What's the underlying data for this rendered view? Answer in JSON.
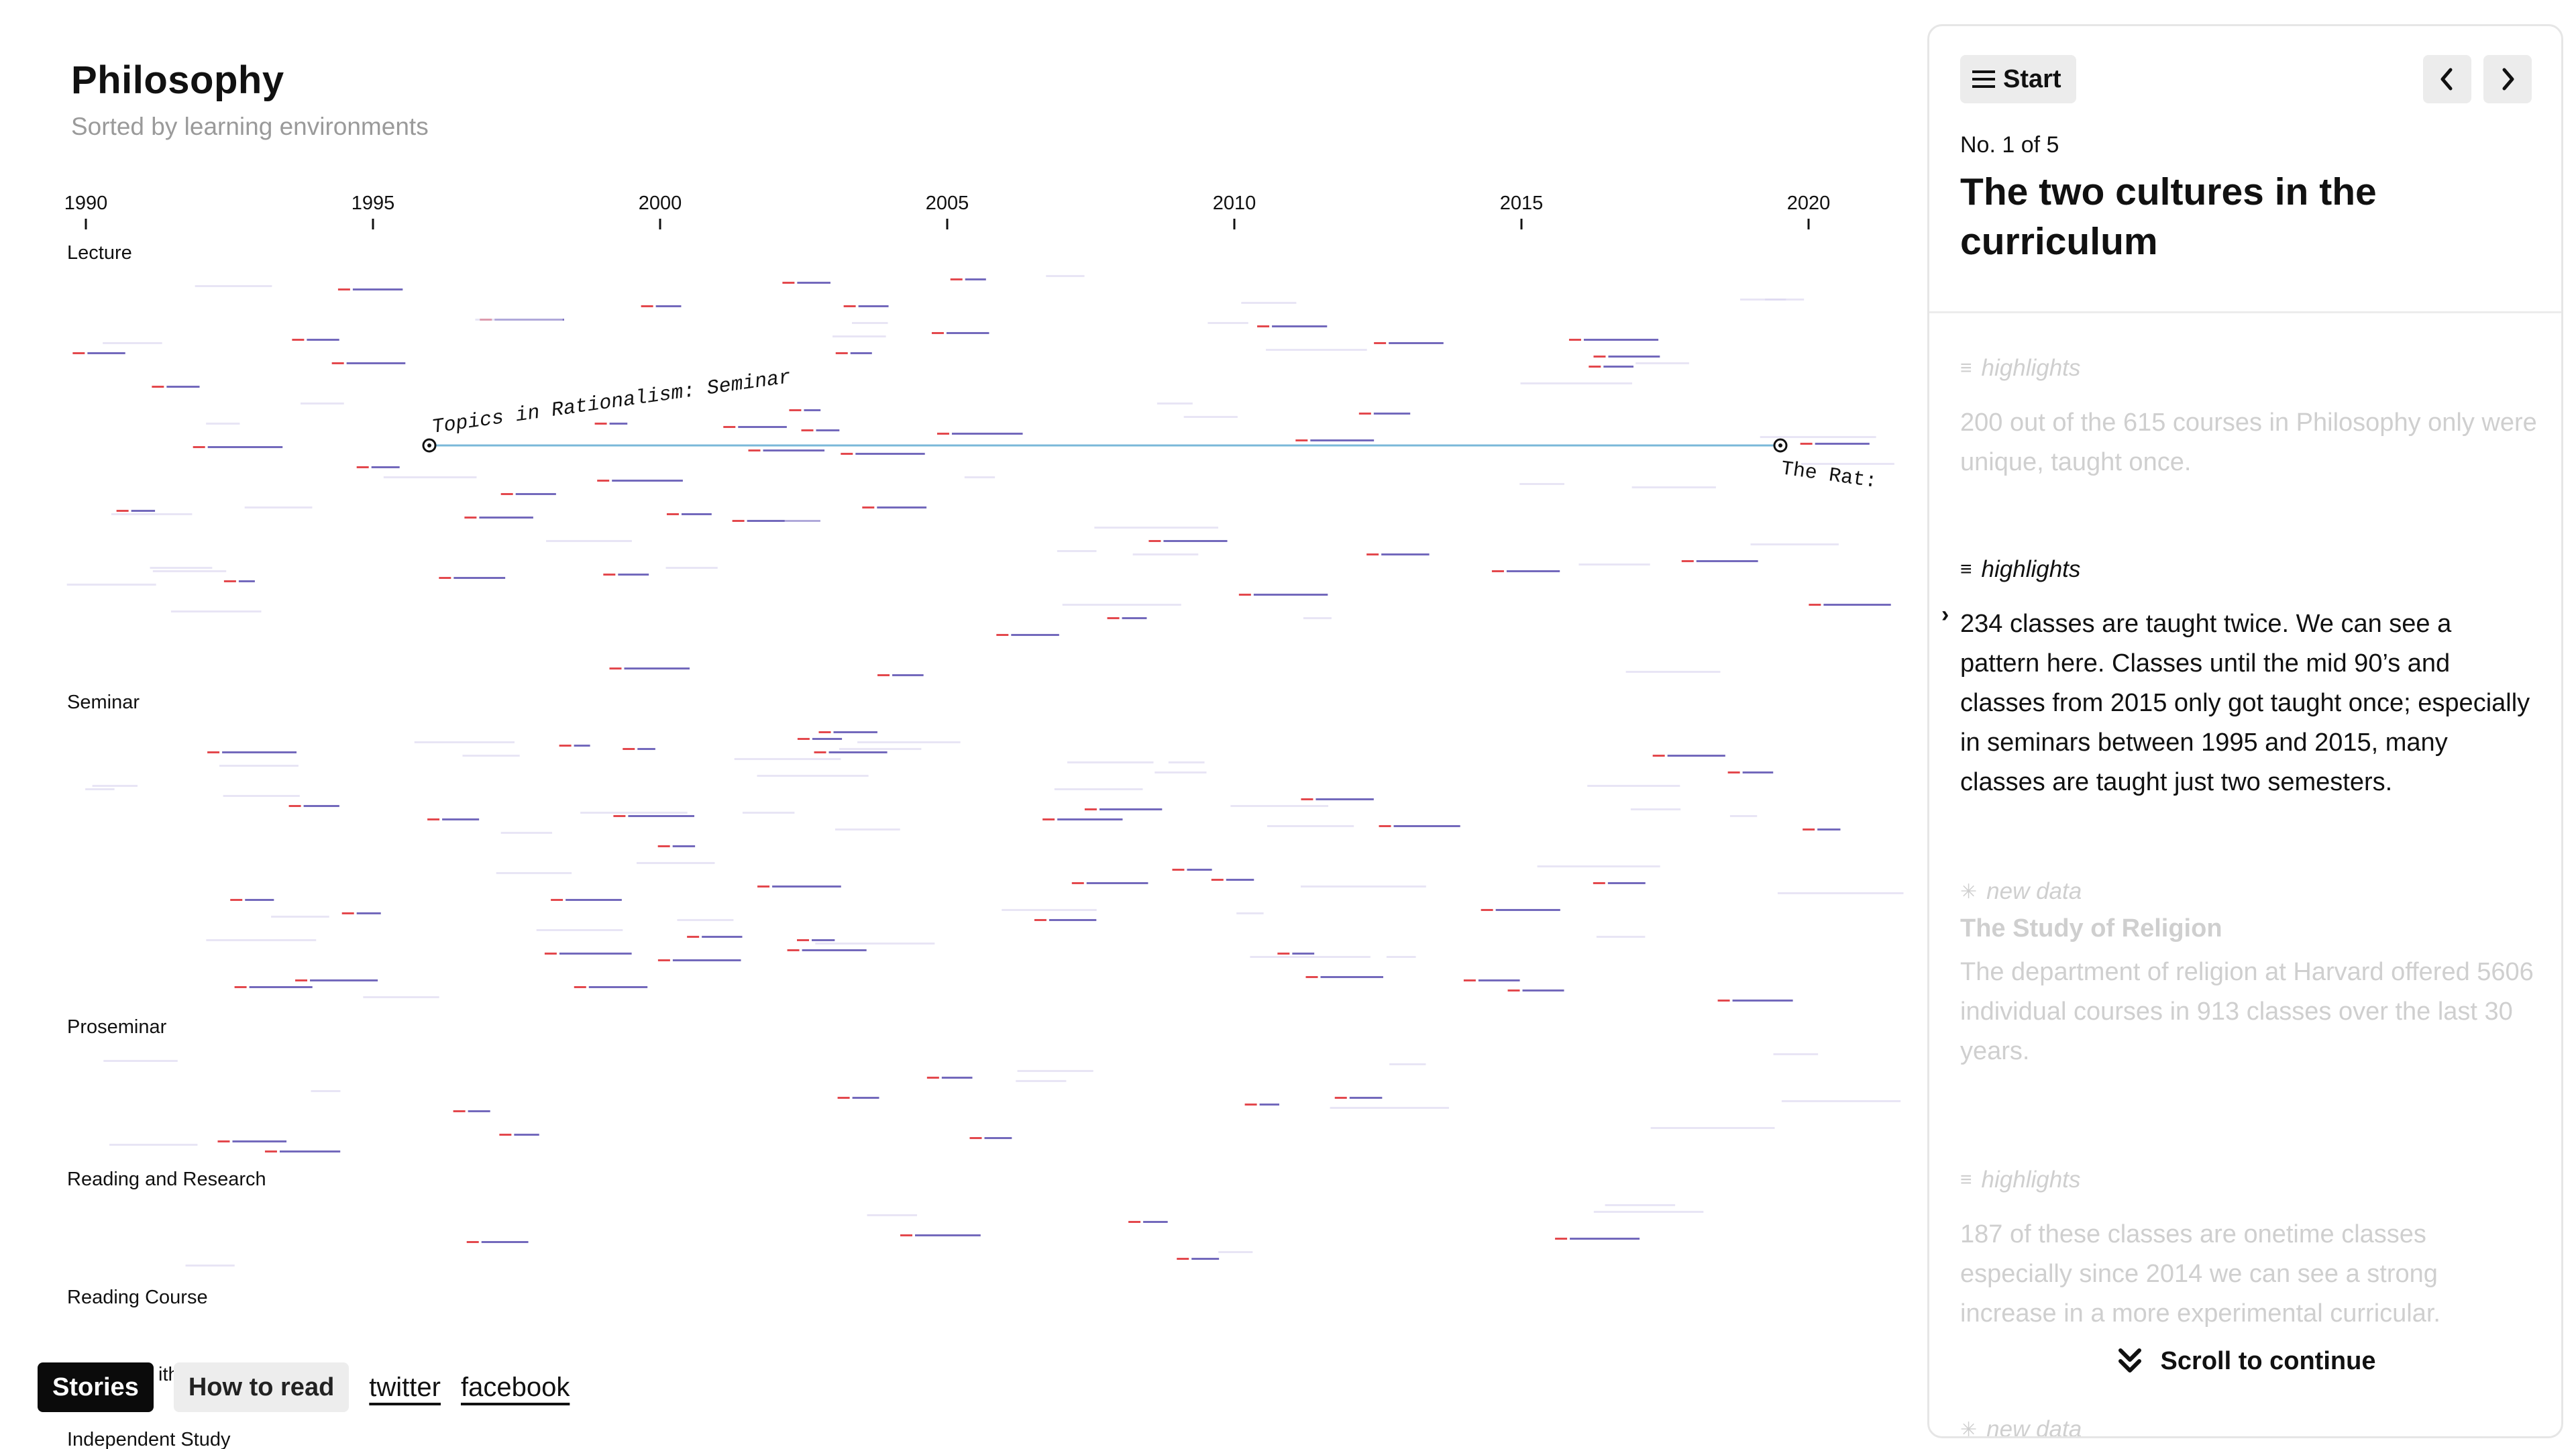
{
  "page": {
    "title": "Philosophy",
    "subtitle": "Sorted by learning environments"
  },
  "timeline": {
    "axis_years": [
      "1990",
      "1995",
      "2000",
      "2005",
      "2010",
      "2015",
      "2020"
    ],
    "groups": [
      "Lecture",
      "Seminar",
      "Proseminar",
      "Reading and Research",
      "Reading Course",
      "Independent Study"
    ],
    "partial_label": "ith",
    "highlight": {
      "label_start": "Topics in Rationalism: Seminar",
      "label_end": "The Rat:",
      "line_color": "#7ab8d9"
    },
    "colors": {
      "red": "#e0343a",
      "purple": "#5b4fb0",
      "faint": "#d8d4ee"
    }
  },
  "bottom_nav": {
    "stories": "Stories",
    "how_to_read": "How to read",
    "twitter": "twitter",
    "facebook": "facebook"
  },
  "panel": {
    "start_label": "Start",
    "counter": "No. 1 of 5",
    "title": "The two cultures in the curriculum",
    "items": [
      {
        "tag": "highlights",
        "text": "200 out of the 615 courses in Philosophy only were unique, taught once."
      },
      {
        "tag": "highlights",
        "text": "234 classes are taught twice. We can see a pattern here. Classes until the mid 90’s and classes from 2015 only got taught once; especially in seminars between 1995 and 2015, many classes are taught just two semesters."
      },
      {
        "tag": "new data",
        "heading": "The Study of Religion",
        "text": "The department of religion at Harvard offered 5606 individual courses in 913 classes over the last 30 years."
      },
      {
        "tag": "highlights",
        "text": "187 of these classes are onetime classes especially since 2014 we can see a strong increase in a more experimental curricular."
      },
      {
        "tag": "new data"
      }
    ],
    "scroll_label": "Scroll to continue"
  }
}
